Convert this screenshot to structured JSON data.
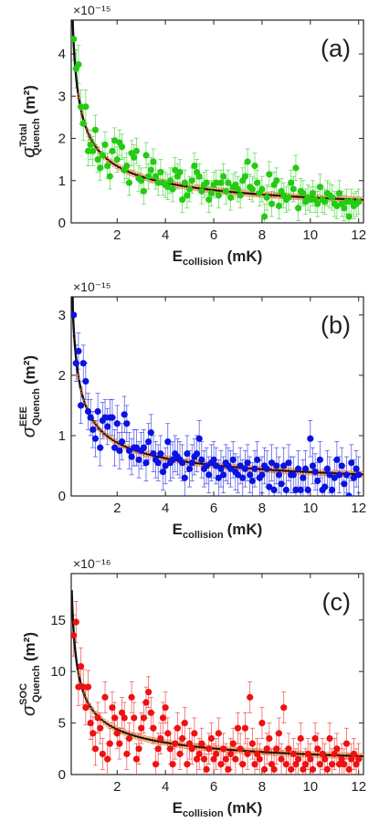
{
  "chart_data": [
    {
      "type": "scatter",
      "panel_label": "(a)",
      "color": "#22cc11",
      "exponent_label": "×10⁻¹⁵",
      "xlabel": {
        "main": "E",
        "sub": "collision",
        "unit": "(mK)"
      },
      "ylabel": {
        "main": "σ",
        "sup": "Total",
        "sub": "Quench",
        "unit": "(m²)"
      },
      "xlim": [
        0.1,
        12.2
      ],
      "ylim": [
        0,
        4.8
      ],
      "xticks": [
        2,
        4,
        6,
        8,
        10,
        12
      ],
      "yticks": [
        0,
        1,
        2,
        3,
        4
      ],
      "fit": {
        "A": 1.9,
        "p": 0.5
      },
      "points": {
        "x": [
          0.2,
          0.3,
          0.4,
          0.5,
          0.6,
          0.7,
          0.8,
          0.9,
          1.0,
          1.1,
          1.2,
          1.3,
          1.4,
          1.5,
          1.6,
          1.7,
          1.8,
          1.9,
          2.0,
          2.1,
          2.2,
          2.3,
          2.4,
          2.5,
          2.6,
          2.7,
          2.8,
          2.9,
          3.0,
          3.1,
          3.2,
          3.3,
          3.4,
          3.5,
          3.6,
          3.7,
          3.8,
          3.9,
          4.0,
          4.1,
          4.2,
          4.3,
          4.4,
          4.5,
          4.6,
          4.7,
          4.8,
          4.9,
          5.0,
          5.1,
          5.2,
          5.3,
          5.4,
          5.5,
          5.6,
          5.7,
          5.8,
          5.9,
          6.0,
          6.1,
          6.2,
          6.3,
          6.4,
          6.5,
          6.6,
          6.7,
          6.8,
          6.9,
          7.0,
          7.1,
          7.2,
          7.3,
          7.4,
          7.5,
          7.6,
          7.7,
          7.8,
          7.9,
          8.0,
          8.1,
          8.2,
          8.3,
          8.4,
          8.5,
          8.6,
          8.7,
          8.8,
          8.9,
          9.0,
          9.1,
          9.2,
          9.3,
          9.4,
          9.5,
          9.6,
          9.7,
          9.8,
          9.9,
          10.0,
          10.1,
          10.2,
          10.3,
          10.4,
          10.5,
          10.6,
          10.7,
          10.8,
          10.9,
          11.0,
          11.1,
          11.2,
          11.3,
          11.4,
          11.5,
          11.6,
          11.7,
          11.8,
          11.9,
          12.0
        ],
        "y": [
          4.35,
          3.65,
          3.75,
          2.75,
          2.35,
          2.75,
          1.7,
          1.85,
          1.7,
          2.2,
          1.5,
          1.3,
          1.6,
          1.85,
          1.35,
          1.1,
          1.7,
          1.95,
          1.5,
          1.9,
          1.8,
          1.25,
          1.35,
          0.95,
          1.65,
          1.55,
          1.7,
          1.05,
          1.0,
          0.75,
          1.6,
          1.1,
          1.25,
          1.45,
          1.1,
          0.95,
          1.2,
          0.95,
          0.9,
          0.85,
          1.0,
          0.8,
          1.25,
          1.1,
          1.2,
          0.55,
          0.95,
          0.65,
          0.8,
          1.0,
          1.35,
          1.2,
          1.1,
          0.75,
          0.9,
          0.95,
          0.55,
          0.7,
          0.9,
          0.95,
          0.65,
          0.95,
          1.1,
          0.75,
          0.95,
          0.6,
          0.85,
          0.9,
          0.8,
          0.65,
          1.0,
          1.1,
          1.45,
          0.85,
          0.8,
          1.35,
          0.95,
          0.7,
          0.8,
          0.15,
          0.6,
          1.15,
          0.45,
          0.9,
          1.0,
          0.4,
          0.75,
          0.65,
          0.55,
          0.6,
          0.95,
          0.8,
          1.3,
          0.35,
          0.75,
          0.7,
          0.5,
          0.6,
          0.55,
          0.7,
          0.55,
          0.45,
          0.85,
          0.55,
          0.5,
          0.7,
          0.65,
          0.6,
          0.45,
          0.4,
          0.7,
          0.45,
          0.35,
          0.5,
          0.15,
          0.5,
          0.4,
          0.45,
          0.5
        ],
        "err": [
          0.5,
          0.45,
          0.45,
          0.4,
          0.4,
          0.4,
          0.35,
          0.35,
          0.35,
          0.35,
          0.3,
          0.3,
          0.3,
          0.3,
          0.3,
          0.3,
          0.3,
          0.3,
          0.3,
          0.3,
          0.3,
          0.3,
          0.3,
          0.3,
          0.3,
          0.3,
          0.3,
          0.3,
          0.3,
          0.3,
          0.3,
          0.3,
          0.3,
          0.3,
          0.3,
          0.3,
          0.3,
          0.3,
          0.3,
          0.3,
          0.3,
          0.3,
          0.3,
          0.3,
          0.3,
          0.3,
          0.3,
          0.3,
          0.3,
          0.3,
          0.3,
          0.3,
          0.3,
          0.3,
          0.3,
          0.3,
          0.3,
          0.3,
          0.3,
          0.3,
          0.3,
          0.3,
          0.3,
          0.3,
          0.3,
          0.3,
          0.3,
          0.3,
          0.3,
          0.3,
          0.3,
          0.3,
          0.3,
          0.3,
          0.3,
          0.3,
          0.3,
          0.3,
          0.3,
          0.3,
          0.3,
          0.3,
          0.3,
          0.3,
          0.3,
          0.3,
          0.3,
          0.3,
          0.3,
          0.3,
          0.3,
          0.3,
          0.3,
          0.3,
          0.3,
          0.3,
          0.3,
          0.3,
          0.3,
          0.3,
          0.3,
          0.3,
          0.3,
          0.3,
          0.3,
          0.3,
          0.3,
          0.3,
          0.3,
          0.3,
          0.3,
          0.3,
          0.3,
          0.3,
          0.3,
          0.3,
          0.3,
          0.3,
          0.3
        ]
      }
    },
    {
      "type": "scatter",
      "panel_label": "(b)",
      "color": "#0a12e0",
      "exponent_label": "×10⁻¹⁵",
      "xlabel": {
        "main": "E",
        "sub": "collision",
        "unit": "(mK)"
      },
      "ylabel": {
        "main": "σ",
        "sup": "EEE",
        "sub": "Quench",
        "unit": "(m²)"
      },
      "xlim": [
        0.1,
        12.2
      ],
      "ylim": [
        0,
        3.3
      ],
      "xticks": [
        2,
        4,
        6,
        8,
        10,
        12
      ],
      "yticks": [
        0,
        1,
        2,
        3
      ],
      "fit": {
        "A": 1.25,
        "p": 0.5
      },
      "points": {
        "x": [
          0.2,
          0.3,
          0.4,
          0.5,
          0.6,
          0.7,
          0.8,
          0.9,
          1.0,
          1.1,
          1.2,
          1.3,
          1.4,
          1.5,
          1.6,
          1.7,
          1.8,
          1.9,
          2.0,
          2.1,
          2.2,
          2.3,
          2.4,
          2.5,
          2.6,
          2.7,
          2.8,
          2.9,
          3.0,
          3.1,
          3.2,
          3.3,
          3.4,
          3.5,
          3.6,
          3.7,
          3.8,
          3.9,
          4.0,
          4.1,
          4.2,
          4.3,
          4.4,
          4.5,
          4.6,
          4.7,
          4.8,
          4.9,
          5.0,
          5.1,
          5.2,
          5.3,
          5.4,
          5.5,
          5.6,
          5.7,
          5.8,
          5.9,
          6.0,
          6.1,
          6.2,
          6.3,
          6.4,
          6.5,
          6.6,
          6.7,
          6.8,
          6.9,
          7.0,
          7.1,
          7.2,
          7.3,
          7.4,
          7.5,
          7.6,
          7.7,
          7.8,
          7.9,
          8.0,
          8.1,
          8.2,
          8.3,
          8.4,
          8.5,
          8.6,
          8.7,
          8.8,
          8.9,
          9.0,
          9.1,
          9.2,
          9.3,
          9.4,
          9.5,
          9.6,
          9.7,
          9.8,
          9.9,
          10.0,
          10.1,
          10.2,
          10.3,
          10.4,
          10.5,
          10.6,
          10.7,
          10.8,
          10.9,
          11.0,
          11.1,
          11.2,
          11.3,
          11.4,
          11.5,
          11.6,
          11.7,
          11.8,
          11.9,
          12.0
        ],
        "y": [
          3.0,
          2.2,
          2.4,
          1.5,
          2.2,
          1.9,
          1.4,
          1.3,
          1.1,
          0.95,
          1.4,
          0.8,
          1.25,
          1.3,
          1.15,
          1.3,
          1.3,
          0.8,
          1.2,
          0.75,
          0.9,
          1.35,
          1.2,
          0.75,
          0.65,
          0.8,
          0.8,
          0.6,
          0.75,
          0.8,
          0.55,
          0.9,
          1.05,
          0.7,
          0.6,
          0.55,
          0.7,
          0.4,
          0.5,
          0.9,
          0.55,
          0.6,
          0.7,
          0.65,
          0.6,
          0.55,
          0.3,
          0.7,
          0.45,
          0.55,
          0.65,
          0.7,
          0.95,
          0.6,
          0.45,
          0.5,
          0.35,
          0.55,
          0.6,
          0.5,
          0.3,
          0.45,
          0.35,
          0.55,
          0.5,
          0.45,
          0.6,
          0.4,
          0.35,
          0.5,
          0.3,
          0.45,
          0.55,
          0.35,
          0.25,
          0.45,
          0.6,
          0.3,
          0.35,
          0.5,
          0.45,
          0.15,
          0.55,
          0.1,
          0.5,
          0.35,
          0.2,
          0.5,
          0.1,
          0.55,
          0.35,
          0.35,
          0.1,
          0.45,
          0.1,
          0.3,
          0.45,
          0.1,
          0.95,
          0.5,
          0.4,
          0.25,
          0.6,
          0.1,
          0.15,
          0.45,
          0.35,
          0.1,
          0.3,
          0.6,
          0.35,
          0.5,
          0.2,
          0.35,
          0.0,
          0.55,
          0.3,
          0.45,
          0.35
        ],
        "err": [
          0.35,
          0.3,
          0.3,
          0.3,
          0.3,
          0.3,
          0.3,
          0.3,
          0.3,
          0.3,
          0.3,
          0.3,
          0.3,
          0.3,
          0.3,
          0.3,
          0.3,
          0.3,
          0.3,
          0.3,
          0.3,
          0.3,
          0.3,
          0.3,
          0.3,
          0.3,
          0.3,
          0.3,
          0.3,
          0.3,
          0.3,
          0.3,
          0.3,
          0.3,
          0.3,
          0.3,
          0.3,
          0.3,
          0.3,
          0.3,
          0.3,
          0.3,
          0.3,
          0.3,
          0.3,
          0.3,
          0.3,
          0.3,
          0.3,
          0.3,
          0.3,
          0.3,
          0.3,
          0.3,
          0.3,
          0.3,
          0.3,
          0.3,
          0.3,
          0.3,
          0.3,
          0.3,
          0.3,
          0.3,
          0.3,
          0.3,
          0.3,
          0.3,
          0.3,
          0.3,
          0.3,
          0.3,
          0.3,
          0.3,
          0.3,
          0.3,
          0.3,
          0.3,
          0.3,
          0.3,
          0.3,
          0.3,
          0.3,
          0.3,
          0.3,
          0.3,
          0.3,
          0.3,
          0.3,
          0.3,
          0.3,
          0.3,
          0.3,
          0.3,
          0.3,
          0.3,
          0.3,
          0.3,
          0.3,
          0.3,
          0.3,
          0.3,
          0.3,
          0.3,
          0.3,
          0.3,
          0.3,
          0.3,
          0.3,
          0.3,
          0.3,
          0.3,
          0.3,
          0.3,
          0.3,
          0.3,
          0.3,
          0.3,
          0.3
        ]
      }
    },
    {
      "type": "scatter",
      "panel_label": "(c)",
      "color": "#ee1111",
      "exponent_label": "×10⁻¹⁶",
      "xlabel": {
        "main": "E",
        "sub": "collision",
        "unit": "(mK)"
      },
      "ylabel": {
        "main": "σ",
        "sup": "SOC",
        "sub": "Quench",
        "unit": "(m²)"
      },
      "xlim": [
        0.1,
        12.2
      ],
      "ylim": [
        0,
        19.5
      ],
      "xticks": [
        2,
        4,
        6,
        8,
        10,
        12
      ],
      "yticks": [
        0,
        5,
        10,
        15
      ],
      "fit": {
        "A": 6.2,
        "p": 0.5
      },
      "points": {
        "x": [
          0.2,
          0.3,
          0.4,
          0.5,
          0.6,
          0.7,
          0.8,
          0.9,
          1.0,
          1.1,
          1.2,
          1.3,
          1.4,
          1.5,
          1.6,
          1.7,
          1.8,
          1.9,
          2.0,
          2.1,
          2.2,
          2.3,
          2.4,
          2.5,
          2.6,
          2.7,
          2.8,
          2.9,
          3.0,
          3.1,
          3.2,
          3.3,
          3.4,
          3.5,
          3.6,
          3.7,
          3.8,
          3.9,
          4.0,
          4.1,
          4.2,
          4.3,
          4.4,
          4.5,
          4.6,
          4.7,
          4.8,
          4.9,
          5.0,
          5.1,
          5.2,
          5.3,
          5.4,
          5.5,
          5.6,
          5.7,
          5.8,
          5.9,
          6.0,
          6.1,
          6.2,
          6.3,
          6.4,
          6.5,
          6.6,
          6.7,
          6.8,
          6.9,
          7.0,
          7.1,
          7.2,
          7.3,
          7.4,
          7.5,
          7.6,
          7.7,
          7.8,
          7.9,
          8.0,
          8.1,
          8.2,
          8.3,
          8.4,
          8.5,
          8.6,
          8.7,
          8.8,
          8.9,
          9.0,
          9.1,
          9.2,
          9.3,
          9.4,
          9.5,
          9.6,
          9.7,
          9.8,
          9.9,
          10.0,
          10.1,
          10.2,
          10.3,
          10.4,
          10.5,
          10.6,
          10.7,
          10.8,
          10.9,
          11.0,
          11.1,
          11.2,
          11.3,
          11.4,
          11.5,
          11.6,
          11.7,
          11.8,
          11.9,
          12.0
        ],
        "y": [
          13.5,
          14.8,
          8.5,
          10.5,
          8.5,
          6.5,
          8.5,
          5.0,
          4.0,
          2.5,
          5.5,
          4.5,
          2.0,
          7.5,
          1.5,
          3.0,
          6.5,
          5.5,
          4.0,
          3.0,
          6.0,
          5.5,
          2.0,
          3.5,
          7.5,
          5.5,
          1.5,
          2.5,
          4.5,
          5.5,
          7.0,
          8.0,
          6.0,
          4.5,
          1.0,
          2.5,
          3.5,
          5.5,
          6.5,
          4.0,
          2.5,
          1.0,
          3.0,
          4.5,
          2.0,
          3.5,
          5.0,
          1.0,
          3.0,
          2.5,
          4.0,
          1.5,
          2.0,
          3.0,
          1.5,
          0.5,
          2.5,
          3.5,
          1.5,
          2.0,
          4.0,
          1.0,
          2.5,
          1.5,
          0.5,
          2.0,
          3.0,
          1.5,
          4.5,
          2.5,
          1.0,
          4.5,
          2.0,
          7.5,
          3.0,
          1.0,
          2.0,
          1.5,
          5.0,
          0.5,
          2.5,
          3.5,
          1.0,
          0.5,
          2.5,
          4.0,
          1.5,
          6.5,
          1.0,
          2.5,
          0.5,
          2.0,
          1.0,
          1.5,
          3.5,
          0.5,
          1.0,
          2.0,
          1.5,
          0.5,
          3.5,
          2.5,
          1.0,
          2.0,
          1.5,
          0.5,
          3.5,
          1.0,
          2.0,
          2.5,
          1.0,
          1.5,
          1.0,
          3.0,
          0.5,
          1.5,
          2.0,
          1.0,
          1.5
        ],
        "err": [
          2.0,
          2.0,
          1.8,
          1.8,
          1.7,
          1.7,
          1.6,
          1.6,
          1.6,
          1.6,
          1.5,
          1.5,
          1.5,
          1.5,
          1.5,
          1.5,
          1.5,
          1.5,
          1.5,
          1.5,
          1.5,
          1.5,
          1.5,
          1.5,
          1.5,
          1.5,
          1.5,
          1.5,
          1.5,
          1.5,
          1.5,
          1.5,
          1.5,
          1.5,
          1.5,
          1.5,
          1.5,
          1.5,
          1.5,
          1.5,
          1.5,
          1.5,
          1.5,
          1.5,
          1.5,
          1.5,
          1.5,
          1.5,
          1.5,
          1.5,
          1.5,
          1.5,
          1.5,
          1.5,
          1.5,
          1.5,
          1.5,
          1.5,
          1.5,
          1.5,
          1.5,
          1.5,
          1.5,
          1.5,
          1.5,
          1.5,
          1.5,
          1.5,
          1.5,
          1.5,
          1.5,
          1.5,
          1.5,
          1.5,
          1.5,
          1.5,
          1.5,
          1.5,
          1.5,
          1.5,
          1.5,
          1.5,
          1.5,
          1.5,
          1.5,
          1.5,
          1.5,
          1.5,
          1.5,
          1.5,
          1.5,
          1.5,
          1.5,
          1.5,
          1.5,
          1.5,
          1.5,
          1.5,
          1.5,
          1.5,
          1.5,
          1.5,
          1.5,
          1.5,
          1.5,
          1.5,
          1.5,
          1.5,
          1.5,
          1.5,
          1.5,
          1.5,
          1.5,
          1.5,
          1.5,
          1.5,
          1.5,
          1.5,
          1.5
        ]
      }
    }
  ]
}
